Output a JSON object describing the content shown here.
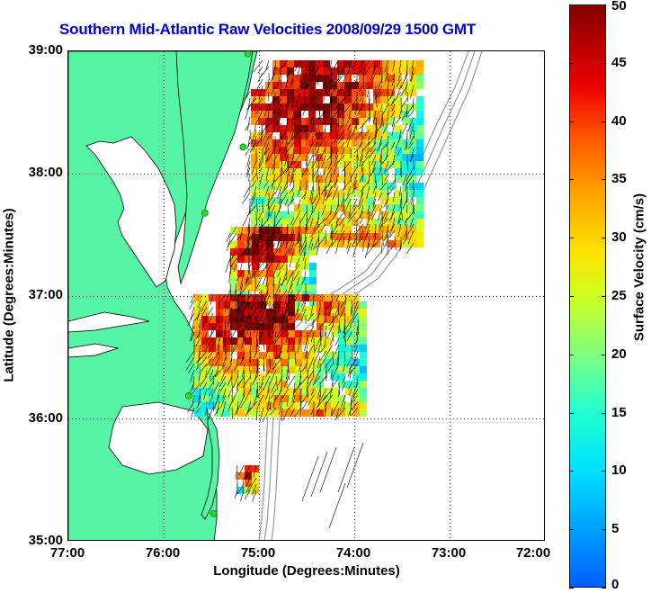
{
  "title": "Southern Mid-Atlantic Raw Velocities 2008/09/29 1500 GMT",
  "x_axis": {
    "title": "Longitude (Degrees:Minutes)",
    "ticks": [
      "77:00",
      "76:00",
      "75:00",
      "74:00",
      "73:00",
      "72:00"
    ]
  },
  "y_axis": {
    "title": "Latitude (Degrees:Minutes)",
    "ticks": [
      "39:00",
      "38:00",
      "37:00",
      "36:00",
      "35:00"
    ]
  },
  "colorbar": {
    "title": "Surface Velocity (cm/s)",
    "ticks": [
      "50",
      "45",
      "40",
      "35",
      "30",
      "25",
      "20",
      "15",
      "10",
      "5",
      "0"
    ],
    "min": 0,
    "max": 50
  },
  "colors": {
    "title": "#0000cc",
    "land": "#55f5a5",
    "grid": "#000000",
    "bathymetry": "#999999",
    "stations": "#22dd22"
  },
  "map": {
    "lon_range": [
      -77,
      -72
    ],
    "lat_range": [
      35,
      39
    ],
    "stations": [
      {
        "lon": -75.12,
        "lat": 38.98
      },
      {
        "lon": -75.17,
        "lat": 38.22
      },
      {
        "lon": -75.57,
        "lat": 37.68
      },
      {
        "lon": -75.74,
        "lat": 36.19
      },
      {
        "lon": -75.48,
        "lat": 35.23
      }
    ]
  }
}
